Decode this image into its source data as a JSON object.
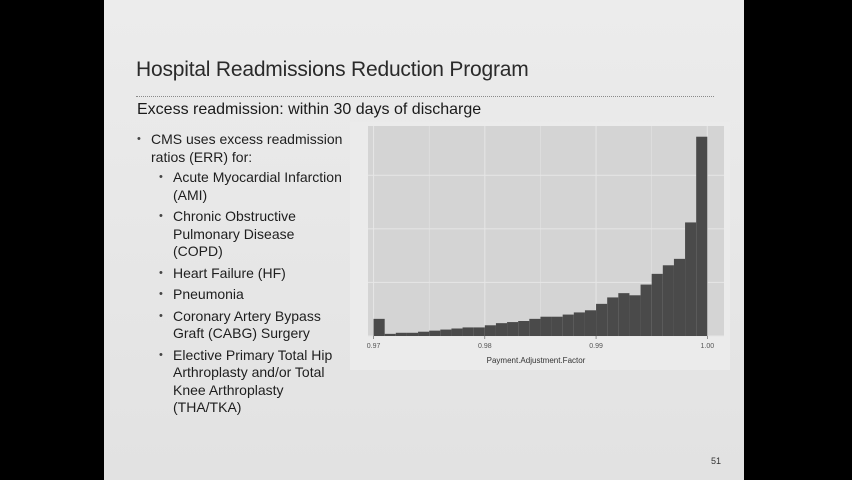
{
  "slide": {
    "title": "Hospital Readmissions Reduction Program",
    "subtitle": "Excess readmission: within 30 days of discharge",
    "bullet_main": "CMS uses excess readmission ratios (ERR) for:",
    "sub_bullets": [
      "Acute Myocardial Infarction (AMI)",
      "Chronic Obstructive Pulmonary Disease (COPD)",
      "Heart Failure (HF)",
      "Pneumonia",
      "Coronary Artery Bypass Graft (CABG) Surgery",
      "Elective Primary Total Hip Arthroplasty and/or Total Knee Arthroplasty (THA/TKA)"
    ],
    "page_number": "51"
  },
  "chart_data": {
    "type": "bar",
    "title": "",
    "xlabel": "Payment.Adjustment.Factor",
    "ylabel": "",
    "xlim": [
      0.9695,
      1.0015
    ],
    "xticks": [
      "0.97",
      "0.98",
      "0.99",
      "1.00"
    ],
    "xtick_values": [
      0.97,
      0.98,
      0.99,
      1.0
    ],
    "bin_width": 0.001,
    "bin_starts": [
      0.97,
      0.971,
      0.972,
      0.973,
      0.974,
      0.975,
      0.976,
      0.977,
      0.978,
      0.979,
      0.98,
      0.981,
      0.982,
      0.983,
      0.984,
      0.985,
      0.986,
      0.987,
      0.988,
      0.989,
      0.99,
      0.991,
      0.992,
      0.993,
      0.994,
      0.995,
      0.996,
      0.997,
      0.998,
      0.999
    ],
    "values": [
      8,
      1,
      1.5,
      1.5,
      2,
      2.5,
      3,
      3.5,
      4,
      4,
      5,
      6,
      6.5,
      7,
      8,
      9,
      9,
      10,
      11,
      12,
      15,
      18,
      20,
      19,
      24,
      29,
      33,
      36,
      53,
      93
    ],
    "ylim": [
      0,
      98
    ],
    "bar_color": "#4a4a4a",
    "panel_color": "#d4d4d4",
    "grid": true
  }
}
